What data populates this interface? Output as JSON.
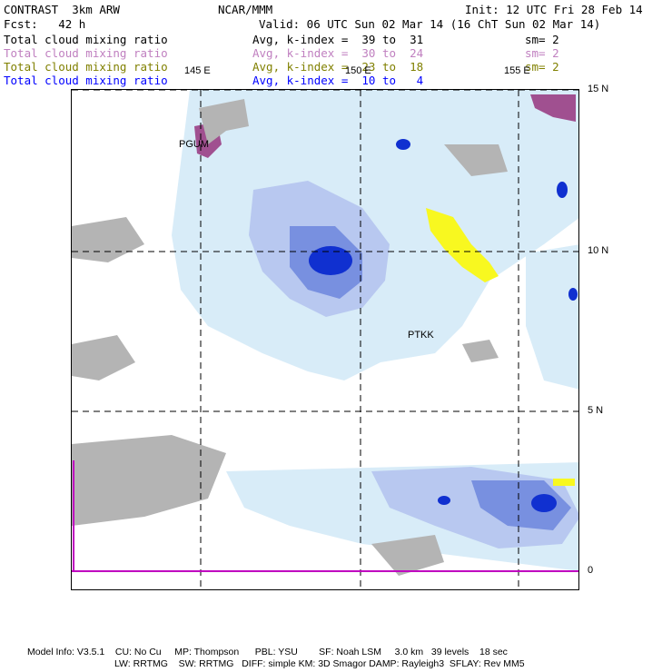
{
  "header": {
    "title_left": "CONTRAST  3km ARW",
    "title_center": "NCAR/MMM",
    "init": "Init: 12 UTC Fri 28 Feb 14",
    "fcst": "Fcst:   42 h",
    "valid": "Valid: 06 UTC Sun 02 Mar 14 (16 ChT Sun 02 Mar 14)"
  },
  "legend_rows": [
    {
      "field": "Total cloud mixing ratio",
      "avg": "Avg, k-index =  39 to  31",
      "sm": "sm= 2",
      "color": "#000000"
    },
    {
      "field": "Total cloud mixing ratio",
      "avg": "Avg, k-index =  30 to  24",
      "sm": "sm= 2",
      "color": "#c080c0"
    },
    {
      "field": "Total cloud mixing ratio",
      "avg": "Avg, k-index =  23 to  18",
      "sm": "sm= 2",
      "color": "#808000"
    },
    {
      "field": "Total cloud mixing ratio",
      "avg": "Avg, k-index =  10 to   4",
      "sm": "",
      "color": "#0000ff"
    }
  ],
  "map": {
    "lon_labels": [
      "145 E",
      "150 E",
      "155 E"
    ],
    "lat_labels": [
      "15 N",
      "10 N",
      "5 N",
      "0"
    ],
    "stations": [
      "PGUM",
      "PTKK"
    ],
    "colors": {
      "land": "#b4b4b4",
      "cloud_light": "#d8ecf8",
      "cloud_mid": "#b8c8f0",
      "cloud_dark": "#7890e0",
      "cloud_core": "#1030d0",
      "high_cloud_yellow": "#f8f820",
      "mid_cloud_purple": "#a05090",
      "equator_line": "#c000c0"
    }
  },
  "footer": {
    "line1": "Model Info: V3.5.1    CU: No Cu     MP: Thompson      PBL: YSU        SF: Noah LSM     3.0 km   39 levels    18 sec",
    "line2": "LW: RRTMG    SW: RRTMG   DIFF: simple KM: 3D Smagor DAMP: Rayleigh3  SFLAY: Rev MM5"
  }
}
